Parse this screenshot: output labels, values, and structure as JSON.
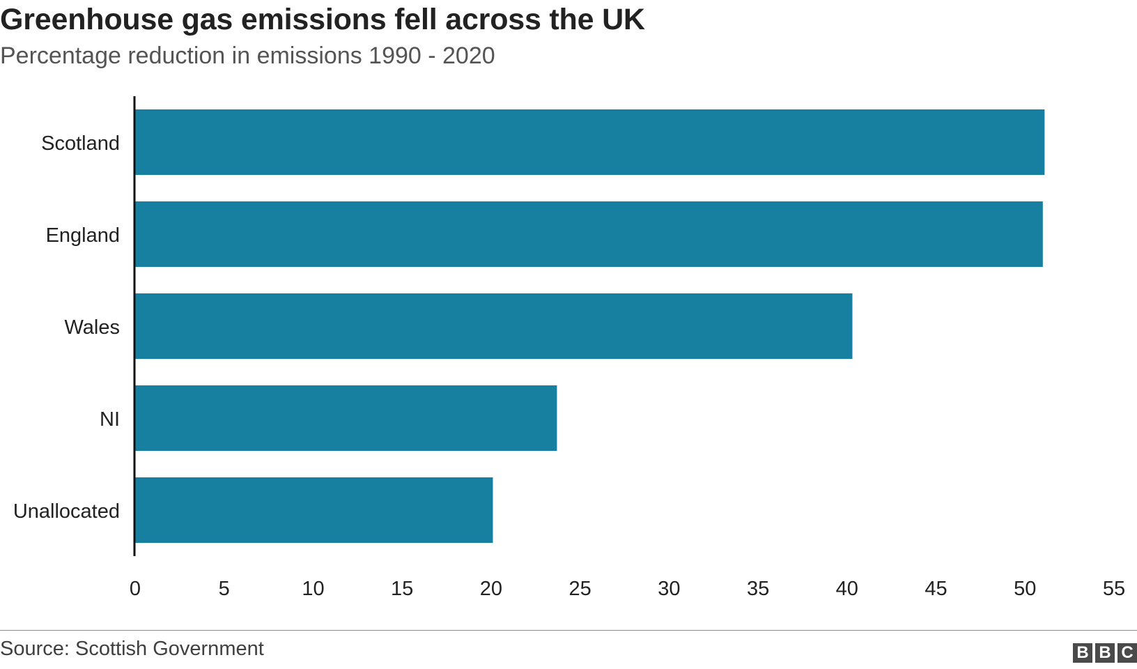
{
  "header": {
    "title": "Greenhouse gas emissions fell across the UK",
    "subtitle": "Percentage reduction in emissions 1990 - 2020"
  },
  "footer": {
    "source": "Source: Scottish Government",
    "logo_letters": [
      "B",
      "B",
      "C"
    ]
  },
  "colors": {
    "bar": "#1780a1",
    "axis": "#111111",
    "text": "#222222"
  },
  "chart_data": {
    "type": "bar",
    "orientation": "horizontal",
    "categories": [
      "Scotland",
      "England",
      "Wales",
      "NI",
      "Unallocated"
    ],
    "values": [
      51.1,
      51.0,
      40.3,
      23.7,
      20.1
    ],
    "xlim": [
      0,
      55
    ],
    "xticks": [
      0,
      5,
      10,
      15,
      20,
      25,
      30,
      35,
      40,
      45,
      50,
      55
    ],
    "title": "Greenhouse gas emissions fell across the UK",
    "subtitle": "Percentage reduction in emissions 1990 - 2020",
    "grid": false,
    "legend": "none"
  }
}
